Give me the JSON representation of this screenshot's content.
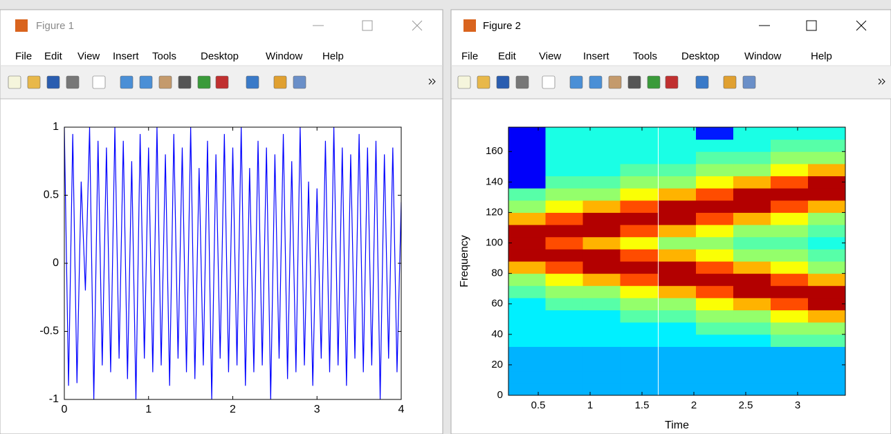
{
  "windows": [
    {
      "title": "Figure 1",
      "menu": [
        "File",
        "Edit",
        "View",
        "Insert",
        "Tools",
        "Desktop",
        "Window",
        "Help"
      ]
    },
    {
      "title": "Figure 2",
      "menu": [
        "File",
        "Edit",
        "View",
        "Insert",
        "Tools",
        "Desktop",
        "Window",
        "Help"
      ]
    }
  ],
  "chart_data": [
    {
      "type": "line",
      "color": "#0000ff",
      "x": [
        0,
        0.05,
        0.1,
        0.15,
        0.2,
        0.25,
        0.3,
        0.35,
        0.4,
        0.45,
        0.5,
        0.55,
        0.6,
        0.65,
        0.7,
        0.75,
        0.8,
        0.85,
        0.9,
        0.95,
        1,
        1.05,
        1.1,
        1.15,
        1.2,
        1.25,
        1.3,
        1.35,
        1.4,
        1.45,
        1.5,
        1.55,
        1.6,
        1.65,
        1.7,
        1.75,
        1.8,
        1.85,
        1.9,
        1.95,
        2,
        2.05,
        2.1,
        2.15,
        2.2,
        2.25,
        2.3,
        2.35,
        2.4,
        2.45,
        2.5,
        2.55,
        2.6,
        2.65,
        2.7,
        2.75,
        2.8,
        2.85,
        2.9,
        2.95,
        3,
        3.05,
        3.1,
        3.15,
        3.2,
        3.25,
        3.3,
        3.35,
        3.4,
        3.45,
        3.5,
        3.55,
        3.6,
        3.65,
        3.7,
        3.75,
        3.8,
        3.85,
        3.9,
        3.95,
        4
      ],
      "values": [
        1,
        -0.9,
        0.95,
        -0.88,
        0.6,
        -0.2,
        1,
        -1,
        0.9,
        -0.75,
        0.85,
        -0.8,
        1,
        -0.7,
        0.9,
        -0.85,
        0.75,
        -1,
        0.95,
        -0.7,
        0.85,
        -0.8,
        1,
        -0.75,
        0.8,
        -0.9,
        0.95,
        -0.7,
        0.85,
        -0.8,
        1,
        -0.85,
        0.7,
        -0.75,
        0.9,
        -1,
        0.8,
        -0.7,
        0.95,
        -0.8,
        0.85,
        -0.75,
        1,
        -0.9,
        0.7,
        -0.8,
        0.9,
        -0.75,
        0.85,
        -1,
        0.8,
        -0.7,
        0.95,
        -0.85,
        0.75,
        -0.8,
        1,
        -0.75,
        0.6,
        -0.9,
        0.55,
        -0.7,
        0.9,
        -0.8,
        1,
        -0.75,
        0.85,
        -0.9,
        0.8,
        -0.7,
        0.95,
        -0.8,
        0.85,
        -0.75,
        0.9,
        -1,
        0.8,
        -0.7,
        0.85,
        -0.8,
        0.45
      ],
      "xlim": [
        0,
        4
      ],
      "ylim": [
        -1,
        1
      ],
      "xticks": [
        0,
        1,
        2,
        3,
        4
      ],
      "yticks": [
        -1,
        -0.5,
        0,
        0.5,
        1
      ]
    },
    {
      "type": "heatmap",
      "x_label": "Time",
      "y_label": "Frequency",
      "colormap": "jet",
      "x": [
        0.39,
        0.75,
        1.11,
        1.47,
        1.84,
        2.2,
        2.56,
        2.92,
        3.28
      ],
      "y": [
        4,
        12,
        20,
        28,
        36,
        44,
        52,
        60,
        68,
        76,
        84,
        92,
        100,
        108,
        116,
        124,
        132,
        140,
        148,
        156,
        164,
        172
      ],
      "z": [
        [
          0.3,
          0.3,
          0.3,
          0.3,
          0.36,
          0.36,
          0.36,
          0.36,
          0.46,
          0.52,
          0.7,
          0.95,
          0.95,
          0.95,
          0.7,
          0.52,
          0.46,
          0.12,
          0.12,
          0.12,
          0.12,
          0.12
        ],
        [
          0.3,
          0.3,
          0.3,
          0.3,
          0.36,
          0.36,
          0.36,
          0.46,
          0.52,
          0.62,
          0.8,
          0.95,
          0.8,
          0.95,
          0.8,
          0.62,
          0.52,
          0.46,
          0.4,
          0.4,
          0.4,
          0.4
        ],
        [
          0.3,
          0.3,
          0.3,
          0.3,
          0.36,
          0.36,
          0.36,
          0.46,
          0.52,
          0.7,
          0.95,
          0.95,
          0.7,
          0.95,
          0.95,
          0.7,
          0.52,
          0.46,
          0.4,
          0.4,
          0.4,
          0.4
        ],
        [
          0.3,
          0.3,
          0.3,
          0.3,
          0.36,
          0.36,
          0.46,
          0.52,
          0.62,
          0.8,
          0.95,
          0.8,
          0.62,
          0.8,
          0.95,
          0.8,
          0.62,
          0.52,
          0.46,
          0.4,
          0.4,
          0.4
        ],
        [
          0.3,
          0.3,
          0.3,
          0.3,
          0.36,
          0.36,
          0.46,
          0.52,
          0.7,
          0.95,
          0.95,
          0.7,
          0.52,
          0.7,
          0.95,
          0.95,
          0.7,
          0.52,
          0.46,
          0.4,
          0.4,
          0.4
        ],
        [
          0.3,
          0.3,
          0.3,
          0.3,
          0.36,
          0.46,
          0.52,
          0.62,
          0.8,
          0.95,
          0.8,
          0.62,
          0.52,
          0.62,
          0.8,
          0.95,
          0.8,
          0.62,
          0.52,
          0.46,
          0.4,
          0.15
        ],
        [
          0.3,
          0.3,
          0.3,
          0.3,
          0.36,
          0.46,
          0.52,
          0.7,
          0.95,
          0.95,
          0.7,
          0.52,
          0.46,
          0.52,
          0.7,
          0.95,
          0.95,
          0.7,
          0.52,
          0.46,
          0.4,
          0.4
        ],
        [
          0.3,
          0.3,
          0.3,
          0.3,
          0.46,
          0.52,
          0.62,
          0.8,
          0.95,
          0.8,
          0.62,
          0.52,
          0.46,
          0.52,
          0.62,
          0.8,
          0.95,
          0.8,
          0.62,
          0.52,
          0.46,
          0.4
        ],
        [
          0.3,
          0.3,
          0.3,
          0.3,
          0.46,
          0.52,
          0.7,
          0.95,
          0.95,
          0.7,
          0.52,
          0.46,
          0.4,
          0.46,
          0.52,
          0.7,
          0.95,
          0.95,
          0.7,
          0.52,
          0.46,
          0.4
        ]
      ],
      "xlim": [
        0.213,
        3.46
      ],
      "ylim": [
        0,
        176
      ],
      "xticks": [
        0.5,
        1,
        1.5,
        2,
        2.5,
        3
      ],
      "yticks": [
        0,
        20,
        40,
        60,
        80,
        100,
        120,
        140,
        160
      ]
    }
  ]
}
